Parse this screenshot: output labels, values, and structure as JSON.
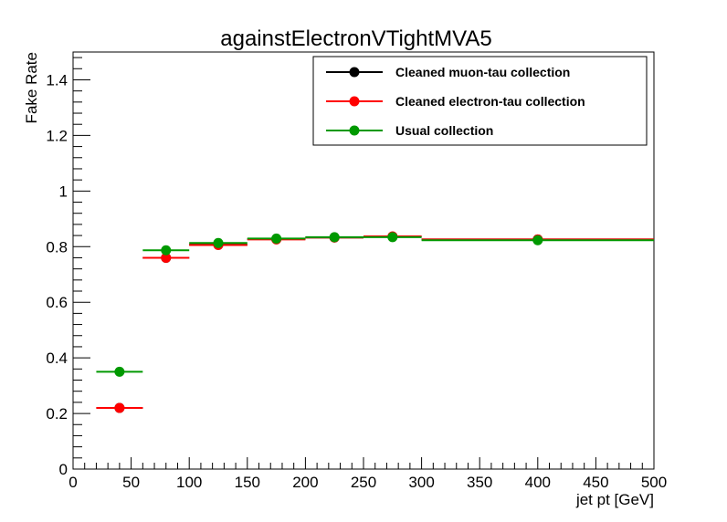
{
  "chart_data": {
    "type": "scatter",
    "title": "againstElectronVTightMVA5",
    "xlabel": "jet pt [GeV]",
    "ylabel": "Fake Rate",
    "xlim": [
      0,
      500
    ],
    "ylim": [
      0,
      1.5
    ],
    "x_ticks": [
      0,
      50,
      100,
      150,
      200,
      250,
      300,
      350,
      400,
      450,
      500
    ],
    "x_tick_labels": [
      "0",
      "50",
      "100",
      "150",
      "200",
      "250",
      "300",
      "350",
      "400",
      "450",
      "500"
    ],
    "y_ticks": [
      0,
      0.2,
      0.4,
      0.6,
      0.8,
      1.0,
      1.2,
      1.4
    ],
    "y_tick_labels": [
      "0",
      "0.2",
      "0.4",
      "0.6",
      "0.8",
      "1",
      "1.2",
      "1.4"
    ],
    "legend_position": "top-right",
    "series": [
      {
        "name": "Cleaned muon-tau collection",
        "color": "#000000",
        "bins": [
          [
            20,
            60
          ],
          [
            60,
            100
          ],
          [
            100,
            150
          ],
          [
            150,
            200
          ],
          [
            200,
            250
          ],
          [
            250,
            300
          ],
          [
            300,
            500
          ]
        ],
        "x": [
          40,
          80,
          125,
          175,
          225,
          275,
          400
        ],
        "values": [
          0.22,
          0.76,
          0.807,
          0.827,
          0.833,
          0.836,
          0.826
        ]
      },
      {
        "name": "Cleaned electron-tau collection",
        "color": "#ff0000",
        "bins": [
          [
            20,
            60
          ],
          [
            60,
            100
          ],
          [
            100,
            150
          ],
          [
            150,
            200
          ],
          [
            200,
            250
          ],
          [
            250,
            300
          ],
          [
            300,
            500
          ]
        ],
        "x": [
          40,
          80,
          125,
          175,
          225,
          275,
          400
        ],
        "values": [
          0.22,
          0.76,
          0.806,
          0.826,
          0.833,
          0.837,
          0.826
        ]
      },
      {
        "name": "Usual collection",
        "color": "#009900",
        "bins": [
          [
            20,
            60
          ],
          [
            60,
            100
          ],
          [
            100,
            150
          ],
          [
            150,
            200
          ],
          [
            200,
            250
          ],
          [
            250,
            300
          ],
          [
            300,
            500
          ]
        ],
        "x": [
          40,
          80,
          125,
          175,
          225,
          275,
          400
        ],
        "values": [
          0.35,
          0.787,
          0.813,
          0.829,
          0.834,
          0.834,
          0.823
        ]
      }
    ]
  }
}
